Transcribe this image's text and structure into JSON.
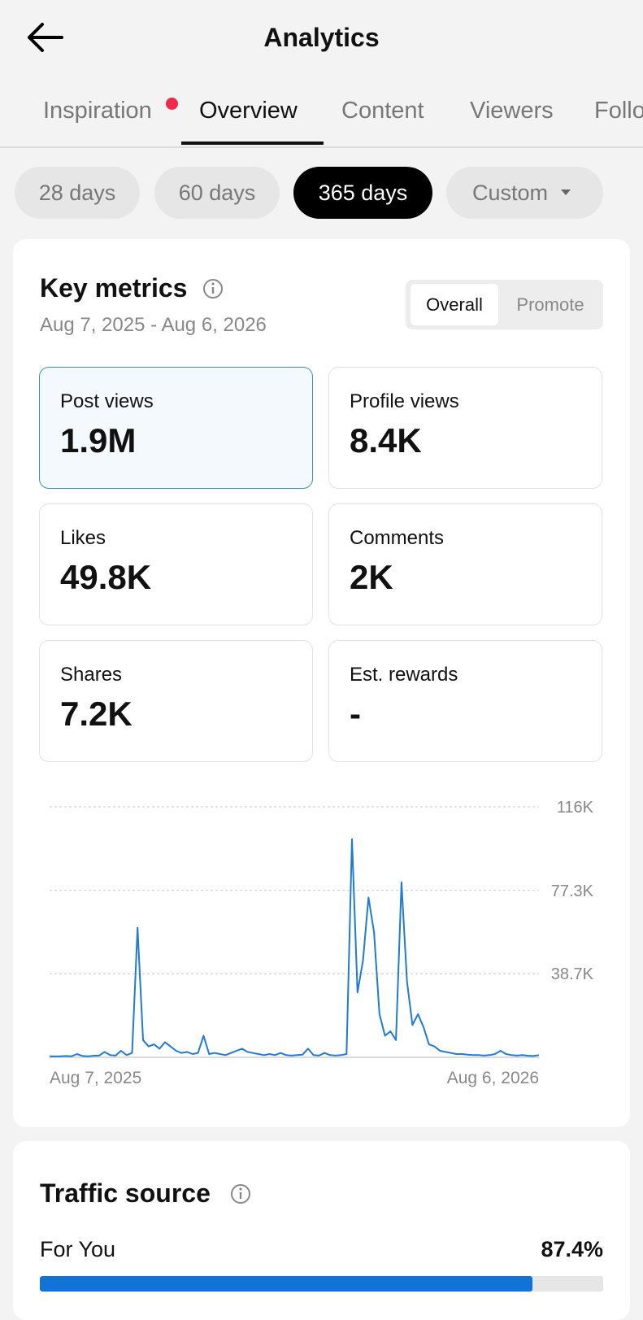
{
  "header": {
    "title": "Analytics"
  },
  "tabs": {
    "items": [
      "Inspiration",
      "Overview",
      "Content",
      "Viewers",
      "Followers"
    ],
    "active": 1,
    "badge": 0
  },
  "ranges": {
    "items": [
      "28 days",
      "60 days",
      "365 days",
      "Custom"
    ],
    "active": 2
  },
  "key_metrics": {
    "title": "Key metrics",
    "date_range": "Aug 7, 2025 - Aug 6, 2026",
    "toggle": {
      "items": [
        "Overall",
        "Promote"
      ],
      "active": 0
    },
    "metrics": [
      {
        "label": "Post views",
        "value": "1.9M"
      },
      {
        "label": "Profile views",
        "value": "8.4K"
      },
      {
        "label": "Likes",
        "value": "49.8K"
      },
      {
        "label": "Comments",
        "value": "2K"
      },
      {
        "label": "Shares",
        "value": "7.2K"
      },
      {
        "label": "Est. rewards",
        "value": "-"
      }
    ],
    "selected": 0
  },
  "chart_data": {
    "type": "line",
    "color": "#1f7bd4",
    "grid": true,
    "categories": [
      "Aug 7, 2025",
      null,
      null,
      null,
      null,
      null,
      null,
      null,
      null,
      null,
      null,
      null,
      null,
      null,
      null,
      null,
      null,
      null,
      null,
      null,
      null,
      null,
      null,
      null,
      null,
      null,
      null,
      null,
      null,
      null,
      null,
      null,
      null,
      null,
      null,
      null,
      null,
      null,
      null,
      null,
      null,
      null,
      null,
      null,
      null,
      null,
      null,
      null,
      null,
      null,
      null,
      null,
      null,
      null,
      null,
      null,
      null,
      null,
      null,
      null,
      null,
      null,
      null,
      null,
      null,
      null,
      null,
      null,
      null,
      null,
      null,
      null,
      null,
      null,
      null,
      null,
      null,
      null,
      null,
      null,
      null,
      null,
      null,
      null,
      null,
      null,
      null,
      null,
      null,
      "Aug 6, 2026"
    ],
    "values": [
      500,
      400,
      500,
      600,
      500,
      1500,
      600,
      500,
      700,
      800,
      2500,
      1000,
      800,
      3000,
      1000,
      2000,
      60000,
      8000,
      5000,
      6000,
      4000,
      7000,
      5000,
      3000,
      2000,
      2500,
      1500,
      2000,
      10000,
      1500,
      2000,
      1500,
      1000,
      2000,
      3000,
      4000,
      2500,
      2000,
      1500,
      1000,
      1500,
      1000,
      2000,
      1000,
      800,
      1000,
      1200,
      4000,
      1000,
      800,
      2000,
      1000,
      800,
      1000,
      1500,
      101000,
      30000,
      45000,
      74000,
      58000,
      20000,
      10000,
      12000,
      8000,
      81000,
      35000,
      15000,
      20000,
      14000,
      6000,
      5000,
      3000,
      2500,
      2000,
      1500,
      1500,
      1200,
      1000,
      1000,
      800,
      1000,
      1500,
      3000,
      1500,
      1000,
      800,
      1000,
      700,
      600,
      1000
    ],
    "ylim": [
      0,
      116000
    ],
    "yticks": [
      {
        "value": 38700,
        "label": "38.7K"
      },
      {
        "value": 77300,
        "label": "77.3K"
      },
      {
        "value": 116000,
        "label": "116K"
      }
    ]
  },
  "traffic": {
    "title": "Traffic source",
    "xlim": [
      0,
      100
    ],
    "rows": [
      {
        "label": "For You",
        "value": 87.4,
        "value_label": "87.4%"
      }
    ]
  }
}
